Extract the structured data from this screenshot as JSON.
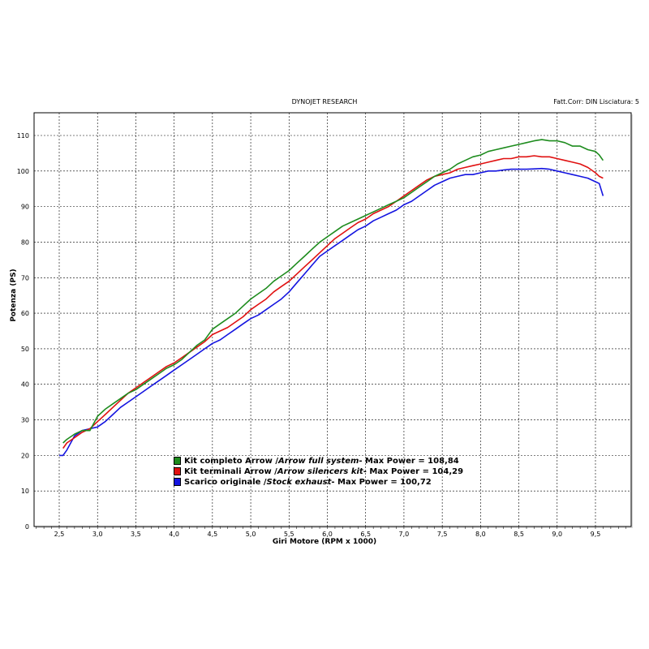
{
  "header": {
    "title": "DYNOJET RESEARCH",
    "correction": "Fatt.Corr: DIN  Lisciatura: 5"
  },
  "chart_data": {
    "type": "line",
    "title": "DYNOJET RESEARCH",
    "xlabel": "Giri Motore (RPM x 1000)",
    "ylabel": "Potenza (PS)",
    "xlim": [
      2.0,
      10.0
    ],
    "ylim": [
      0,
      120
    ],
    "x_ticks": [
      "2,5",
      "3,0",
      "3,5",
      "4,0",
      "4,5",
      "5,0",
      "5,5",
      "6,0",
      "6,5",
      "7,0",
      "7,5",
      "8,0",
      "8,5",
      "9,0",
      "9,5"
    ],
    "y_ticks": [
      "0",
      "10",
      "20",
      "30",
      "40",
      "50",
      "60",
      "70",
      "80",
      "90",
      "100",
      "110"
    ],
    "grid": true,
    "legend_position": "bottom-center",
    "series": [
      {
        "name": "Kit completo Arrow / Arrow full system - Max Power = 108,84",
        "name_plain": "Kit completo Arrow / ",
        "name_italic": "Arrow full system",
        "name_suffix": " - Max Power = 108,84",
        "color": "#1e8c1e",
        "x": [
          2.55,
          2.6,
          2.7,
          2.8,
          2.9,
          3.0,
          3.1,
          3.2,
          3.3,
          3.4,
          3.5,
          3.6,
          3.7,
          3.8,
          3.9,
          4.0,
          4.1,
          4.2,
          4.3,
          4.4,
          4.5,
          4.6,
          4.7,
          4.8,
          4.9,
          5.0,
          5.1,
          5.2,
          5.3,
          5.4,
          5.5,
          5.6,
          5.7,
          5.8,
          5.9,
          6.0,
          6.1,
          6.2,
          6.3,
          6.4,
          6.5,
          6.6,
          6.7,
          6.8,
          6.9,
          7.0,
          7.1,
          7.2,
          7.3,
          7.4,
          7.5,
          7.6,
          7.7,
          7.8,
          7.9,
          8.0,
          8.1,
          8.2,
          8.3,
          8.4,
          8.5,
          8.6,
          8.7,
          8.8,
          8.9,
          9.0,
          9.1,
          9.2,
          9.3,
          9.4,
          9.5,
          9.55,
          9.6
        ],
        "y": [
          23.5,
          24.5,
          26.0,
          27.0,
          27.0,
          31.0,
          33.0,
          34.5,
          36.0,
          37.5,
          38.5,
          40.0,
          41.5,
          43.0,
          44.5,
          45.5,
          47.0,
          49.0,
          51.0,
          52.5,
          55.5,
          57.0,
          58.5,
          60.0,
          62.0,
          64.0,
          65.5,
          67.0,
          69.0,
          70.5,
          72.0,
          74.0,
          76.0,
          78.0,
          80.0,
          81.5,
          83.0,
          84.5,
          85.5,
          86.5,
          87.5,
          88.5,
          89.5,
          90.5,
          91.5,
          92.5,
          94.0,
          95.5,
          97.0,
          98.5,
          99.5,
          100.5,
          102.0,
          103.0,
          104.0,
          104.5,
          105.5,
          106.0,
          106.5,
          107.0,
          107.5,
          108.0,
          108.5,
          108.84,
          108.5,
          108.5,
          108.0,
          107.0,
          107.0,
          106.0,
          105.5,
          104.5,
          103.0
        ]
      },
      {
        "name": "Kit terminali Arrow / Arrow silencers kit - Max Power = 104,29",
        "name_plain": "Kit terminali Arrow / ",
        "name_italic": "Arrow silencers kit",
        "name_suffix": " - Max Power = 104,29",
        "color": "#e01010",
        "x": [
          2.55,
          2.6,
          2.7,
          2.8,
          2.9,
          3.0,
          3.1,
          3.2,
          3.3,
          3.4,
          3.5,
          3.6,
          3.7,
          3.8,
          3.9,
          4.0,
          4.1,
          4.2,
          4.3,
          4.4,
          4.5,
          4.6,
          4.7,
          4.8,
          4.9,
          5.0,
          5.1,
          5.2,
          5.3,
          5.4,
          5.5,
          5.6,
          5.7,
          5.8,
          5.9,
          6.0,
          6.1,
          6.2,
          6.3,
          6.4,
          6.5,
          6.6,
          6.7,
          6.8,
          6.9,
          7.0,
          7.1,
          7.2,
          7.3,
          7.4,
          7.5,
          7.6,
          7.7,
          7.8,
          7.9,
          8.0,
          8.1,
          8.2,
          8.3,
          8.4,
          8.5,
          8.6,
          8.7,
          8.8,
          8.9,
          9.0,
          9.1,
          9.2,
          9.3,
          9.4,
          9.5,
          9.55,
          9.6
        ],
        "y": [
          22.0,
          23.5,
          25.0,
          26.5,
          27.5,
          29.5,
          31.5,
          33.5,
          35.5,
          37.5,
          39.0,
          40.5,
          42.0,
          43.5,
          45.0,
          46.0,
          47.5,
          49.0,
          50.5,
          52.0,
          54.0,
          55.0,
          56.0,
          57.5,
          59.0,
          61.0,
          62.5,
          64.0,
          66.0,
          67.5,
          69.0,
          71.0,
          73.0,
          75.0,
          77.0,
          79.0,
          81.0,
          82.5,
          84.0,
          85.5,
          86.5,
          88.0,
          89.0,
          90.0,
          91.5,
          93.0,
          94.5,
          96.0,
          97.5,
          98.5,
          99.0,
          99.5,
          100.5,
          101.0,
          101.5,
          102.0,
          102.5,
          103.0,
          103.5,
          103.5,
          104.0,
          104.0,
          104.29,
          104.0,
          104.0,
          103.5,
          103.0,
          102.5,
          102.0,
          101.0,
          99.5,
          98.5,
          98.0
        ]
      },
      {
        "name": "Scarico originale / Stock exhaust - Max Power = 100,72",
        "name_plain": "Scarico originale / ",
        "name_italic": "Stock exhaust",
        "name_suffix": " - Max Power = 100,72",
        "color": "#1414e0",
        "x": [
          2.5,
          2.55,
          2.6,
          2.7,
          2.8,
          2.9,
          3.0,
          3.1,
          3.2,
          3.3,
          3.4,
          3.5,
          3.6,
          3.7,
          3.8,
          3.9,
          4.0,
          4.1,
          4.2,
          4.3,
          4.4,
          4.5,
          4.6,
          4.7,
          4.8,
          4.9,
          5.0,
          5.1,
          5.2,
          5.3,
          5.4,
          5.5,
          5.6,
          5.7,
          5.8,
          5.9,
          6.0,
          6.1,
          6.2,
          6.3,
          6.4,
          6.5,
          6.6,
          6.7,
          6.8,
          6.9,
          7.0,
          7.1,
          7.2,
          7.3,
          7.4,
          7.5,
          7.6,
          7.7,
          7.8,
          7.9,
          8.0,
          8.1,
          8.2,
          8.3,
          8.4,
          8.5,
          8.6,
          8.7,
          8.8,
          8.9,
          9.0,
          9.1,
          9.2,
          9.3,
          9.4,
          9.5,
          9.55,
          9.6
        ],
        "y": [
          20.0,
          20.0,
          21.5,
          25.5,
          27.0,
          27.5,
          28.0,
          29.5,
          31.5,
          33.5,
          35.0,
          36.5,
          38.0,
          39.5,
          41.0,
          42.5,
          44.0,
          45.5,
          47.0,
          48.5,
          50.0,
          51.5,
          52.5,
          54.0,
          55.5,
          57.0,
          58.5,
          59.5,
          61.0,
          62.5,
          64.0,
          66.0,
          68.5,
          71.0,
          73.5,
          76.0,
          77.5,
          79.0,
          80.5,
          82.0,
          83.5,
          84.5,
          86.0,
          87.0,
          88.0,
          89.0,
          90.5,
          91.5,
          93.0,
          94.5,
          96.0,
          97.0,
          98.0,
          98.5,
          99.0,
          99.0,
          99.5,
          100.0,
          100.0,
          100.3,
          100.5,
          100.5,
          100.5,
          100.6,
          100.72,
          100.5,
          100.0,
          99.5,
          99.0,
          98.5,
          98.0,
          97.0,
          96.5,
          93.0
        ]
      }
    ]
  }
}
